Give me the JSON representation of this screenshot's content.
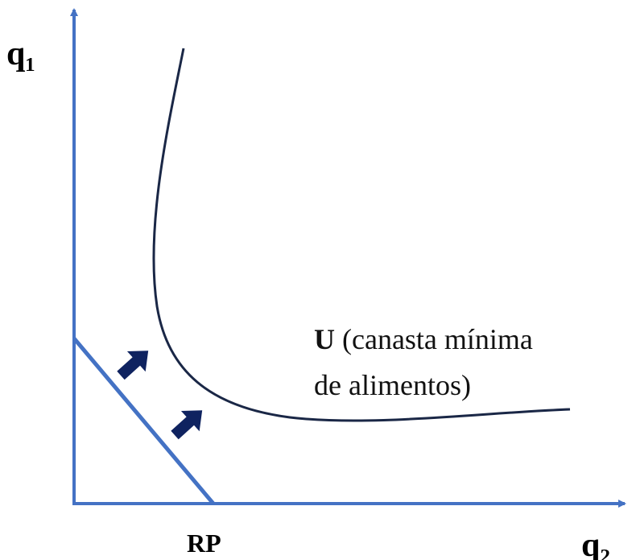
{
  "diagram": {
    "y_axis_label": "q₁",
    "x_axis_label": "q₂",
    "budget_line_label": "RP",
    "curve_label": {
      "letter": "U",
      "lines": [
        "(canasta mínima",
        "de alimentos)"
      ]
    }
  }
}
